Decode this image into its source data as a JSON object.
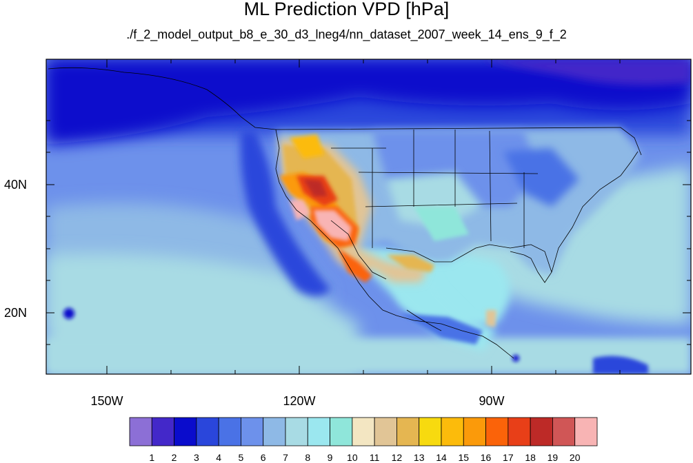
{
  "title": "ML Prediction VPD [hPa]",
  "subtitle": "./f_2_model_output_b8_e_30_d3_lneg4/nn_dataset_2007_week_14_ens_9_f_2",
  "map": {
    "projection": "cylindrical equidistant",
    "lon_range": [
      -160,
      -58
    ],
    "lat_range": [
      10.5,
      60
    ],
    "lat_ticks": [
      {
        "value": 40,
        "label": "40N"
      },
      {
        "value": 20,
        "label": "20N"
      }
    ],
    "lon_ticks": [
      {
        "value": -150,
        "label": "150W"
      },
      {
        "value": -120,
        "label": "120W"
      },
      {
        "value": -90,
        "label": "90W"
      }
    ]
  },
  "colorbar": {
    "levels": [
      "1",
      "2",
      "3",
      "4",
      "5",
      "6",
      "7",
      "8",
      "9",
      "10",
      "11",
      "12",
      "13",
      "14",
      "15",
      "16",
      "17",
      "18",
      "19",
      "20"
    ],
    "colors": [
      "#8c6fd6",
      "#4328c9",
      "#0a0ccc",
      "#2a46db",
      "#4a72e6",
      "#6d91eb",
      "#8eb9e6",
      "#a8dbe4",
      "#9be7ef",
      "#8fe6da",
      "#f3e6c2",
      "#e1c596",
      "#e5b651",
      "#f7da0f",
      "#fcbb0b",
      "#fb9a0a",
      "#fb6309",
      "#e83f18",
      "#bd2a27",
      "#d05656",
      "#f8b4b4"
    ]
  }
}
